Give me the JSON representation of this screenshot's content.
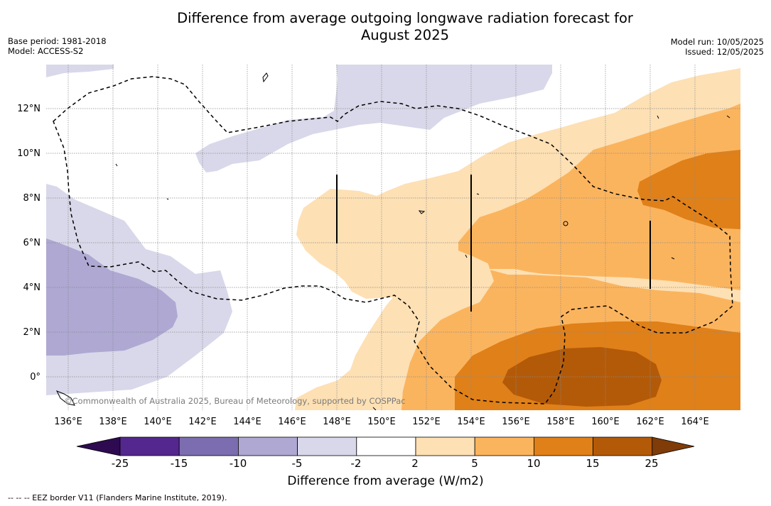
{
  "title": {
    "line1": "Difference from average outgoing longwave radiation forecast for",
    "line2": "August 2025"
  },
  "meta_left": {
    "base_period": "Base period: 1981-2018",
    "model": "Model: ACCESS-S2"
  },
  "meta_right": {
    "model_run": "Model run: 10/05/2025",
    "issued": "Issued: 12/05/2025"
  },
  "map": {
    "x_ticks": [
      "136°E",
      "138°E",
      "140°E",
      "142°E",
      "144°E",
      "146°E",
      "148°E",
      "150°E",
      "152°E",
      "154°E",
      "156°E",
      "158°E",
      "160°E",
      "162°E",
      "164°E"
    ],
    "y_ticks": [
      "12°N",
      "10°N",
      "8°N",
      "6°N",
      "4°N",
      "2°N",
      "0°"
    ],
    "copyright": "©Commonwealth of Australia 2025, Bureau of Meteorology, supported by COSPPac"
  },
  "colorbar": {
    "label": "Difference from average (W/m2)",
    "ticks": [
      "-25",
      "-15",
      "-10",
      "-5",
      "-2",
      "2",
      "5",
      "10",
      "15",
      "25"
    ],
    "colors": {
      "below": "#2e0a50",
      "c_25_15": "#54278f",
      "c_15_10": "#7c6db0",
      "c_10_5": "#aea8d3",
      "c_5_2": "#d8d8ea",
      "c_2_2": "#ffffff",
      "c2_5": "#fde0b4",
      "c5_10": "#fbb45e",
      "c10_15": "#e08019",
      "c15_25": "#b35a09",
      "above": "#7f3b08"
    }
  },
  "footnote": "--  --  -- EEZ border V11 (Flanders Marine Institute, 2019)."
}
